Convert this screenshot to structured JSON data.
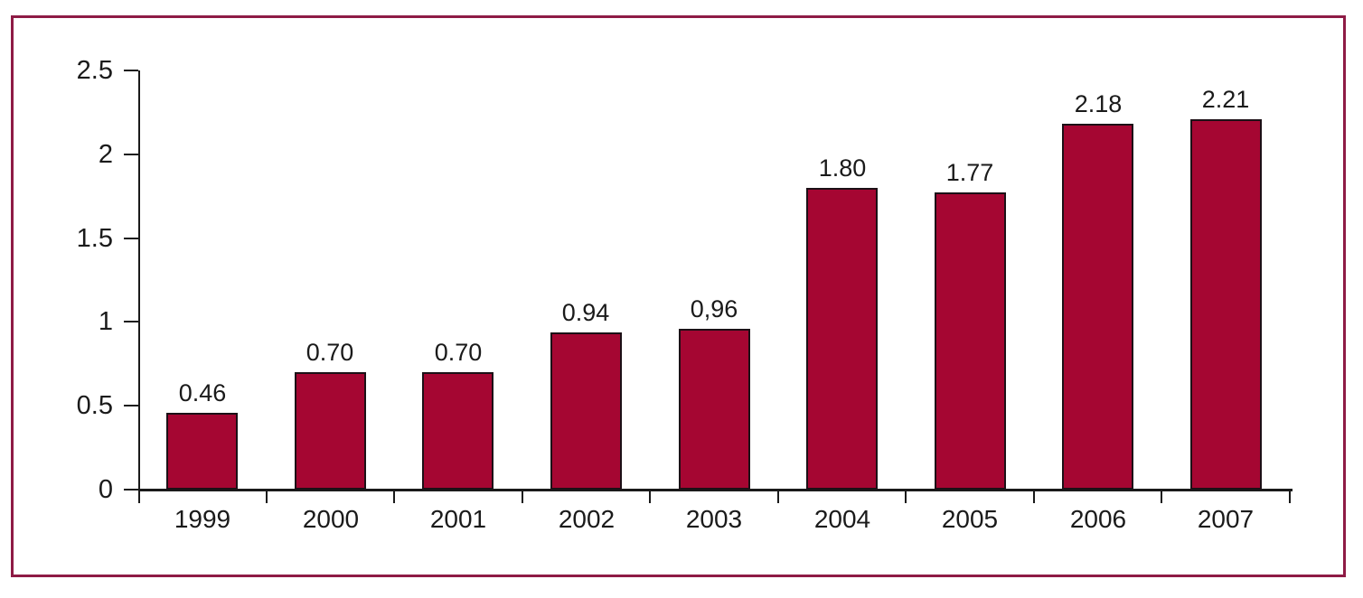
{
  "chart_data": {
    "type": "bar",
    "title": "",
    "xlabel": "",
    "ylabel": "",
    "categories": [
      "1999",
      "2000",
      "2001",
      "2002",
      "2003",
      "2004",
      "2005",
      "2006",
      "2007"
    ],
    "values": [
      0.46,
      0.7,
      0.7,
      0.94,
      0.96,
      1.8,
      1.77,
      2.18,
      2.21
    ],
    "value_labels": [
      "0.46",
      "0.70",
      "0.70",
      "0.94",
      "0,96",
      "1.80",
      "1.77",
      "2.18",
      "2.21"
    ],
    "ylim": [
      0,
      2.5
    ],
    "yticks": [
      0,
      0.5,
      1,
      1.5,
      2,
      2.5
    ],
    "ytick_labels": [
      "0",
      "0.5",
      "1",
      "1.5",
      "2",
      "2.5"
    ],
    "grid": false,
    "legend": "none",
    "colors": {
      "bar_fill": "#A50632",
      "bar_border": "#1c1016",
      "frame_border": "#8E1B45",
      "axis": "#1a1a1a",
      "text": "#1a1a1a",
      "background": "#ffffff"
    }
  }
}
